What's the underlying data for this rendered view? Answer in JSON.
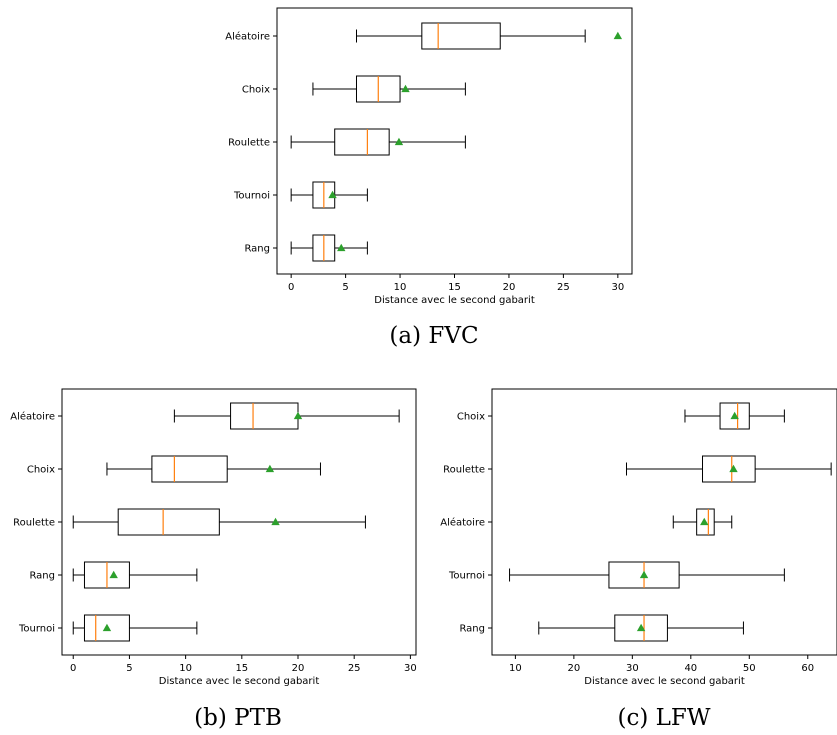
{
  "chart_data": [
    {
      "type": "box",
      "caption": "(a) FVC",
      "xlabel": "Distance avec le second gabarit",
      "xlim": [
        -1.3,
        31.3
      ],
      "xticks": [
        0,
        5,
        10,
        15,
        20,
        25,
        30
      ],
      "categories": [
        "Aléatoire",
        "Choix",
        "Roulette",
        "Tournoi",
        "Rang"
      ],
      "series": [
        {
          "label": "Aléatoire",
          "whislo": 6,
          "q1": 12,
          "med": 13.5,
          "q3": 19.2,
          "whishi": 27,
          "mean": 30
        },
        {
          "label": "Choix",
          "whislo": 2,
          "q1": 6,
          "med": 8,
          "q3": 10,
          "whishi": 16,
          "mean": 10.5
        },
        {
          "label": "Roulette",
          "whislo": 0,
          "q1": 4,
          "med": 7,
          "q3": 9,
          "whishi": 16,
          "mean": 9.9
        },
        {
          "label": "Tournoi",
          "whislo": 0,
          "q1": 2,
          "med": 3,
          "q3": 4,
          "whishi": 7,
          "mean": 3.8
        },
        {
          "label": "Rang",
          "whislo": 0,
          "q1": 2,
          "med": 3,
          "q3": 4,
          "whishi": 7,
          "mean": 4.6
        }
      ]
    },
    {
      "type": "box",
      "caption": "(b) PTB",
      "xlabel": "Distance avec le second gabarit",
      "xlim": [
        -1,
        30.5
      ],
      "xticks": [
        0,
        5,
        10,
        15,
        20,
        25,
        30
      ],
      "categories": [
        "Aléatoire",
        "Choix",
        "Roulette",
        "Rang",
        "Tournoi"
      ],
      "series": [
        {
          "label": "Aléatoire",
          "whislo": 9,
          "q1": 14,
          "med": 16,
          "q3": 20,
          "whishi": 29,
          "mean": 20
        },
        {
          "label": "Choix",
          "whislo": 3,
          "q1": 7,
          "med": 9,
          "q3": 13.7,
          "whishi": 22,
          "mean": 17.5
        },
        {
          "label": "Roulette",
          "whislo": 0,
          "q1": 4,
          "med": 8,
          "q3": 13,
          "whishi": 26,
          "mean": 18
        },
        {
          "label": "Rang",
          "whislo": 0,
          "q1": 1,
          "med": 3,
          "q3": 5,
          "whishi": 11,
          "mean": 3.6
        },
        {
          "label": "Tournoi",
          "whislo": 0,
          "q1": 1,
          "med": 2,
          "q3": 5,
          "whishi": 11,
          "mean": 3
        }
      ]
    },
    {
      "type": "box",
      "caption": "(c) LFW",
      "xlabel": "Distance avec le second gabarit",
      "xlim": [
        6,
        65
      ],
      "xticks": [
        10,
        20,
        30,
        40,
        50,
        60
      ],
      "categories": [
        "Choix",
        "Roulette",
        "Aléatoire",
        "Tournoi",
        "Rang"
      ],
      "series": [
        {
          "label": "Choix",
          "whislo": 39,
          "q1": 45,
          "med": 48,
          "q3": 50,
          "whishi": 56,
          "mean": 47.5
        },
        {
          "label": "Roulette",
          "whislo": 29,
          "q1": 42,
          "med": 47,
          "q3": 51,
          "whishi": 64,
          "mean": 47.3
        },
        {
          "label": "Aléatoire",
          "whislo": 37,
          "q1": 41,
          "med": 43,
          "q3": 44,
          "whishi": 47,
          "mean": 42.3
        },
        {
          "label": "Tournoi",
          "whislo": 9,
          "q1": 26,
          "med": 32,
          "q3": 38,
          "whishi": 56,
          "mean": 32
        },
        {
          "label": "Rang",
          "whislo": 14,
          "q1": 27,
          "med": 32,
          "q3": 36,
          "whishi": 49,
          "mean": 31.5
        }
      ]
    }
  ]
}
